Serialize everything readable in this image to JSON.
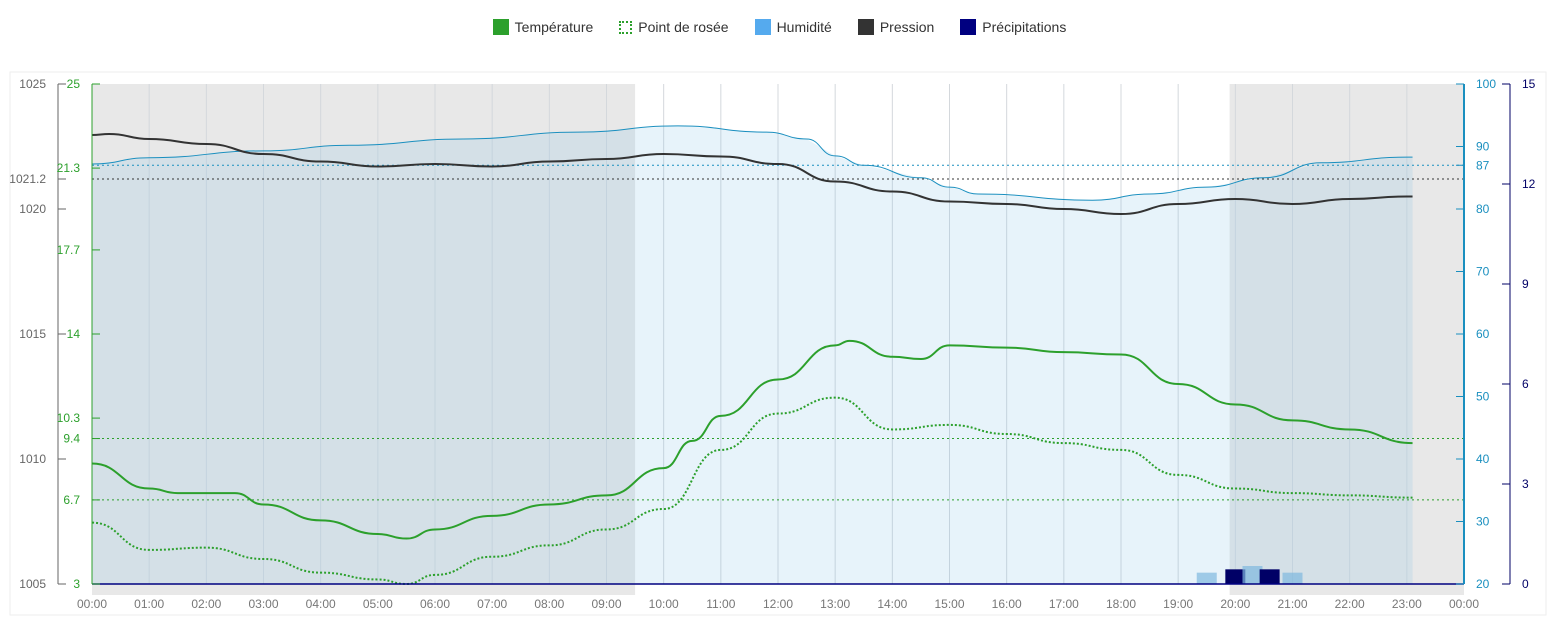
{
  "legend": [
    {
      "label": "Température",
      "color": "#2ca02c",
      "style": "solid"
    },
    {
      "label": "Point de rosée",
      "color": "#2ca02c",
      "style": "dotted"
    },
    {
      "label": "Humidité",
      "color": "#55aaee",
      "style": "solid"
    },
    {
      "label": "Pression",
      "color": "#333333",
      "style": "solid"
    },
    {
      "label": "Précipitations",
      "color": "#000080",
      "style": "solid"
    }
  ],
  "chart_data": {
    "type": "line",
    "x_ticks": [
      "00:00",
      "01:00",
      "02:00",
      "03:00",
      "04:00",
      "05:00",
      "06:00",
      "07:00",
      "08:00",
      "09:00",
      "10:00",
      "11:00",
      "12:00",
      "13:00",
      "14:00",
      "15:00",
      "16:00",
      "17:00",
      "18:00",
      "19:00",
      "20:00",
      "21:00",
      "22:00",
      "23:00",
      "00:00"
    ],
    "axes": {
      "pressure": {
        "range": [
          1005,
          1025
        ],
        "ticks": [
          "1005",
          "1010",
          "1015",
          "1020",
          "1021.2",
          "1025"
        ],
        "color": "#666666"
      },
      "temperature": {
        "range": [
          3,
          25
        ],
        "ticks": [
          "3",
          "6.7",
          "9.4",
          "10.3",
          "14",
          "17.7",
          "21.3",
          "25"
        ],
        "color": "#2ca02c"
      },
      "humidity": {
        "range": [
          20,
          100
        ],
        "ticks": [
          "20",
          "30",
          "40",
          "50",
          "60",
          "70",
          "80",
          "87",
          "90",
          "100"
        ],
        "color": "#1a8fbf"
      },
      "precipitation": {
        "range": [
          0,
          15
        ],
        "ticks": [
          "0",
          "3",
          "6",
          "9",
          "12",
          "15"
        ],
        "color": "#000066"
      }
    },
    "reference_lines": {
      "temperature": [
        9.4,
        6.7
      ],
      "pressure": [
        1021.2
      ],
      "humidity": [
        87
      ]
    },
    "night_periods": [
      [
        0,
        9.5
      ],
      [
        19.9,
        24
      ]
    ],
    "series": [
      {
        "name": "Température",
        "axis": "temperature",
        "x": [
          0,
          1,
          1.5,
          2.5,
          3,
          4,
          5,
          5.5,
          6,
          7,
          8,
          9,
          10,
          10.5,
          11,
          12,
          13,
          13.25,
          14,
          14.5,
          15,
          16,
          17,
          18,
          19,
          20,
          21,
          22,
          23.1
        ],
        "y": [
          8.3,
          7.2,
          7.0,
          7.0,
          6.5,
          5.8,
          5.2,
          5.0,
          5.4,
          6.0,
          6.5,
          6.9,
          8.1,
          9.3,
          10.4,
          12.0,
          13.5,
          13.7,
          13.0,
          12.9,
          13.5,
          13.4,
          13.2,
          13.1,
          11.8,
          10.9,
          10.2,
          9.8,
          9.2
        ]
      },
      {
        "name": "Point de rosée",
        "axis": "temperature",
        "x": [
          0,
          1,
          2,
          3,
          4,
          5,
          5.5,
          6,
          7,
          8,
          9,
          10,
          11,
          12,
          13,
          14,
          15,
          16,
          17,
          18,
          19,
          20,
          21,
          22,
          23.1
        ],
        "y": [
          5.7,
          4.5,
          4.6,
          4.1,
          3.5,
          3.2,
          3.0,
          3.4,
          4.2,
          4.7,
          5.4,
          6.3,
          8.9,
          10.5,
          11.2,
          9.8,
          10.0,
          9.6,
          9.2,
          8.9,
          7.8,
          7.2,
          7.0,
          6.9,
          6.8
        ]
      },
      {
        "name": "Humidité",
        "axis": "humidity",
        "x": [
          0,
          1,
          3,
          4.5,
          6.5,
          8.5,
          10.25,
          11.8,
          12.5,
          13,
          13.5,
          14.5,
          15,
          15.5,
          17.5,
          18.5,
          19.5,
          20.5,
          21.5,
          23,
          23.1
        ],
        "y": [
          87.2,
          88.2,
          89.3,
          90.2,
          91.2,
          92.3,
          93.3,
          92.3,
          91.2,
          88.5,
          87,
          85,
          83.5,
          82.4,
          81.4,
          82.4,
          83.5,
          85,
          87.4,
          88.3,
          88.3
        ]
      },
      {
        "name": "Pression",
        "axis": "pressure",
        "x": [
          0,
          0.3,
          1,
          2,
          3,
          4,
          5,
          6,
          7,
          8,
          9,
          10,
          11,
          12,
          13,
          14,
          15,
          16,
          17,
          18,
          19,
          20,
          21,
          22,
          23,
          23.1
        ],
        "y": [
          1022.96,
          1023.0,
          1022.8,
          1022.6,
          1022.2,
          1021.9,
          1021.7,
          1021.8,
          1021.7,
          1021.9,
          1022.0,
          1022.2,
          1022.1,
          1021.8,
          1021.1,
          1020.7,
          1020.3,
          1020.2,
          1020.0,
          1019.8,
          1020.2,
          1020.4,
          1020.2,
          1020.4,
          1020.5,
          1020.5
        ]
      },
      {
        "name": "Précipitations",
        "axis": "precipitation",
        "type": "bar",
        "x": [
          19.5,
          20,
          20.3,
          20.6,
          21
        ],
        "y": [
          0.1,
          0.2,
          0.3,
          0.2,
          0.1
        ]
      }
    ]
  }
}
